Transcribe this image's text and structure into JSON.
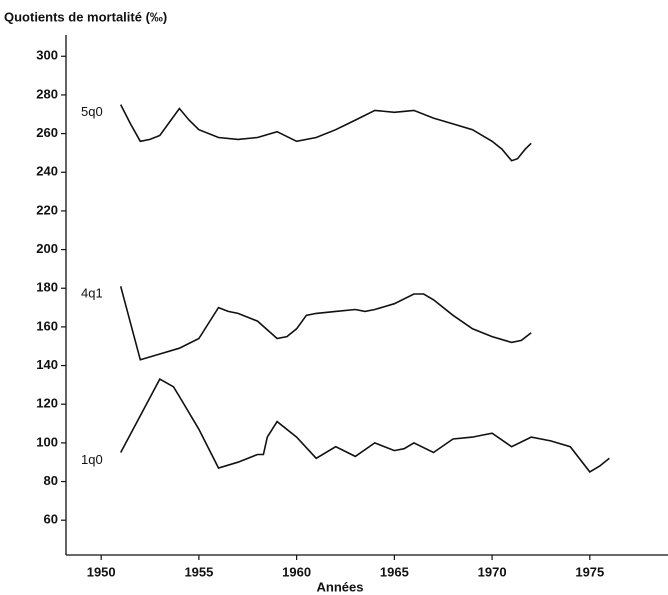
{
  "chart_data": {
    "type": "line",
    "title": "Quotients de mortalité (‰)",
    "x_label": "Années",
    "xlim": [
      1948.2,
      1979
    ],
    "xticks": [
      1950,
      1955,
      1960,
      1965,
      1970,
      1975
    ],
    "ylim": [
      42,
      311
    ],
    "yticks": [
      60,
      80,
      100,
      120,
      140,
      160,
      180,
      200,
      220,
      240,
      260,
      280,
      300
    ],
    "series": [
      {
        "name": "5q0",
        "color": "#111111",
        "x": [
          1951,
          1951.5,
          1952,
          1952.5,
          1953,
          1953.5,
          1954,
          1954.5,
          1955,
          1956,
          1957,
          1958,
          1959,
          1960,
          1961,
          1962,
          1963,
          1964,
          1965,
          1966,
          1967,
          1968,
          1969,
          1970,
          1970.5,
          1971,
          1971.3,
          1971.7,
          1972
        ],
        "values": [
          275,
          265,
          256,
          257,
          259,
          266,
          273,
          267,
          262,
          258,
          257,
          258,
          261,
          256,
          258,
          262,
          267,
          272,
          271,
          272,
          268,
          265,
          262,
          256,
          252,
          246,
          247,
          252,
          255
        ]
      },
      {
        "name": "4q1",
        "color": "#111111",
        "x": [
          1951,
          1952,
          1953,
          1954,
          1955,
          1955.5,
          1956,
          1956.5,
          1957,
          1958,
          1959,
          1959.5,
          1960,
          1960.5,
          1961,
          1962,
          1963,
          1963.5,
          1964,
          1965,
          1966,
          1966.5,
          1967,
          1968,
          1969,
          1970,
          1971,
          1971.5,
          1972
        ],
        "values": [
          181,
          143,
          146,
          149,
          154,
          162,
          170,
          168,
          167,
          163,
          154,
          155,
          159,
          166,
          167,
          168,
          169,
          168,
          169,
          172,
          177,
          177,
          174,
          166,
          159,
          155,
          152,
          153,
          157
        ]
      },
      {
        "name": "1q0",
        "color": "#111111",
        "x": [
          1951,
          1952,
          1953,
          1953.7,
          1954,
          1955,
          1956,
          1957,
          1958,
          1958.3,
          1958.5,
          1959,
          1960,
          1961,
          1962,
          1963,
          1964,
          1965,
          1965.5,
          1966,
          1967,
          1968,
          1969,
          1969.5,
          1970,
          1971,
          1972,
          1973,
          1974,
          1975,
          1975.5,
          1976
        ],
        "values": [
          95,
          114,
          133,
          129,
          124,
          107,
          87,
          90,
          94,
          94,
          103,
          111,
          103,
          92,
          98,
          93,
          100,
          96,
          97,
          100,
          95,
          102,
          103,
          104,
          105,
          98,
          103,
          101,
          98,
          85,
          88,
          92
        ]
      }
    ]
  }
}
